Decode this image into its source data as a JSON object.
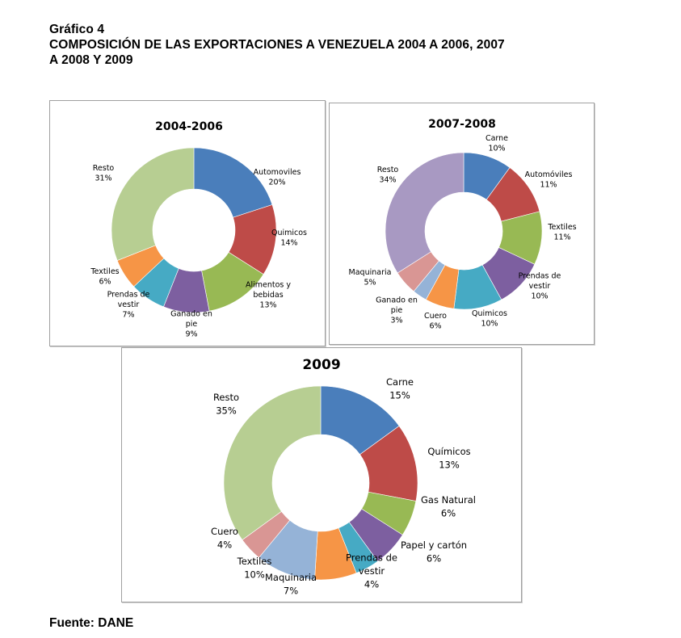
{
  "header": {
    "figure_number": "Gráfico 4",
    "title_line1": "COMPOSICIÓN DE LAS EXPORTACIONES A VENEZUELA 2004 A 2006, 2007",
    "title_line2": "A 2008 Y 2009"
  },
  "source": "Fuente: DANE",
  "palette": {
    "blue": "#4A7EBB",
    "red": "#BE4B48",
    "green": "#98B954",
    "purple": "#7D5FA0",
    "teal": "#46AAC4",
    "orange": "#F69546",
    "light_green": "#B7CE92",
    "lavender": "#A899C2",
    "pink": "#D99694",
    "light_blue": "#95B3D7"
  },
  "chart_data": [
    {
      "type": "pie",
      "variant": "doughnut",
      "title": "2004-2006",
      "start_angle_deg": 0,
      "direction": "clockwise",
      "slices": [
        {
          "label": [
            "Automoviles"
          ],
          "value": 20,
          "pct_label": "20%",
          "color": "#4A7EBB"
        },
        {
          "label": [
            "Quimicos"
          ],
          "value": 14,
          "pct_label": "14%",
          "color": "#BE4B48"
        },
        {
          "label": [
            "Alimentos y",
            "bebidas"
          ],
          "value": 13,
          "pct_label": "13%",
          "color": "#98B954"
        },
        {
          "label": [
            "Ganado en",
            "pie"
          ],
          "value": 9,
          "pct_label": "9%",
          "color": "#7D5FA0"
        },
        {
          "label": [
            "Prendas de",
            "vestir"
          ],
          "value": 7,
          "pct_label": "7%",
          "color": "#46AAC4"
        },
        {
          "label": [
            "Textiles"
          ],
          "value": 6,
          "pct_label": "6%",
          "color": "#F69546"
        },
        {
          "label": [
            "Resto"
          ],
          "value": 31,
          "pct_label": "31%",
          "color": "#B7CE92"
        }
      ]
    },
    {
      "type": "pie",
      "variant": "doughnut",
      "title": "2007-2008",
      "start_angle_deg": 0,
      "direction": "clockwise",
      "slices": [
        {
          "label": [
            "Carne"
          ],
          "value": 10,
          "pct_label": "10%",
          "color": "#4A7EBB"
        },
        {
          "label": [
            "Automóviles"
          ],
          "value": 11,
          "pct_label": "11%",
          "color": "#BE4B48"
        },
        {
          "label": [
            "Textiles"
          ],
          "value": 11,
          "pct_label": "11%",
          "color": "#98B954"
        },
        {
          "label": [
            "Prendas de",
            "vestir"
          ],
          "value": 10,
          "pct_label": "10%",
          "color": "#7D5FA0"
        },
        {
          "label": [
            "Quimicos"
          ],
          "value": 10,
          "pct_label": "10%",
          "color": "#46AAC4"
        },
        {
          "label": [
            "Cuero"
          ],
          "value": 6,
          "pct_label": "6%",
          "color": "#F69546"
        },
        {
          "label": [
            "Ganado en",
            "pie"
          ],
          "value": 3,
          "pct_label": "3%",
          "color": "#95B3D7"
        },
        {
          "label": [
            "Maquinaria"
          ],
          "value": 5,
          "pct_label": "5%",
          "color": "#D99694"
        },
        {
          "label": [
            "Resto"
          ],
          "value": 34,
          "pct_label": "34%",
          "color": "#A899C2"
        }
      ]
    },
    {
      "type": "pie",
      "variant": "doughnut",
      "title": "2009",
      "start_angle_deg": 0,
      "direction": "clockwise",
      "slices": [
        {
          "label": [
            "Carne"
          ],
          "value": 15,
          "pct_label": "15%",
          "color": "#4A7EBB"
        },
        {
          "label": [
            "Químicos"
          ],
          "value": 13,
          "pct_label": "13%",
          "color": "#BE4B48"
        },
        {
          "label": [
            "Gas Natural"
          ],
          "value": 6,
          "pct_label": "6%",
          "color": "#98B954"
        },
        {
          "label": [
            "Papel y cartón"
          ],
          "value": 6,
          "pct_label": "6%",
          "color": "#7D5FA0"
        },
        {
          "label": [
            "Prendas de",
            "vestir"
          ],
          "value": 4,
          "pct_label": "4%",
          "color": "#46AAC4"
        },
        {
          "label": [
            "Maquinaria"
          ],
          "value": 7,
          "pct_label": "7%",
          "color": "#F69546"
        },
        {
          "label": [
            "Textiles"
          ],
          "value": 10,
          "pct_label": "10%",
          "color": "#95B3D7"
        },
        {
          "label": [
            "Cuero"
          ],
          "value": 4,
          "pct_label": "4%",
          "color": "#D99694"
        },
        {
          "label": [
            "Resto"
          ],
          "value": 35,
          "pct_label": "35%",
          "color": "#B7CE92"
        }
      ]
    }
  ]
}
